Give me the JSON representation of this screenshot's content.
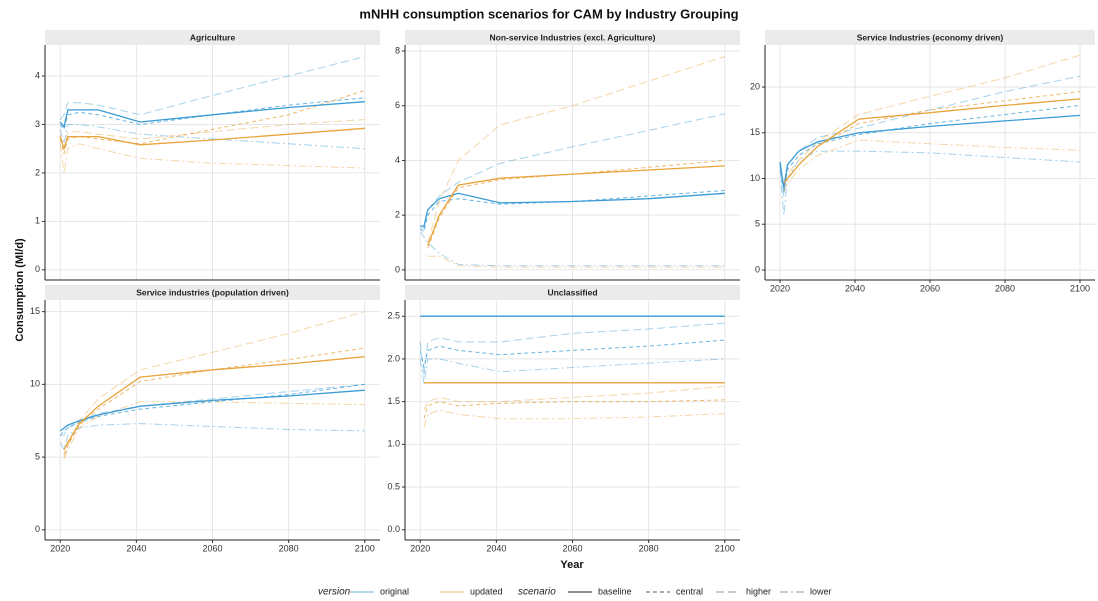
{
  "title": "mNHH consumption scenarios for CAM by Industry Grouping",
  "x_label": "Year",
  "y_label": "Consumption (Ml/d)",
  "legend": {
    "version": {
      "title": "version",
      "items": [
        {
          "name": "original",
          "color": "#3a9bd5"
        },
        {
          "name": "updated",
          "color": "#e8a33d"
        }
      ]
    },
    "scenario": {
      "title": "scenario",
      "items": [
        {
          "name": "baseline",
          "dash": "none",
          "opacity": 1
        },
        {
          "name": "central",
          "dash": "4 3",
          "opacity": 0.75
        },
        {
          "name": "higher",
          "dash": "8 4",
          "opacity": 0.45
        },
        {
          "name": "lower",
          "dash": "8 3 2 3",
          "opacity": 0.45
        }
      ]
    }
  },
  "chart_data": [
    {
      "type": "line",
      "title": "Agriculture",
      "x": [
        2020,
        2021,
        2022,
        2025,
        2030,
        2041,
        2060,
        2080,
        2100
      ],
      "xlim": [
        2016,
        2104
      ],
      "xticks": [
        2020,
        2040,
        2060,
        2080,
        2100
      ],
      "ylim": [
        -0.21,
        4.64
      ],
      "yticks": [
        0,
        1,
        2,
        3,
        4
      ],
      "series": [
        {
          "version": "original",
          "scenario": "baseline",
          "values": [
            3.05,
            2.95,
            3.3,
            3.3,
            3.3,
            3.05,
            3.2,
            3.35,
            3.47
          ]
        },
        {
          "version": "original",
          "scenario": "central",
          "values": [
            3.0,
            2.9,
            3.2,
            3.25,
            3.2,
            3.0,
            3.2,
            3.4,
            3.55
          ]
        },
        {
          "version": "original",
          "scenario": "higher",
          "values": [
            3.1,
            3.2,
            3.45,
            3.45,
            3.4,
            3.2,
            3.6,
            4.0,
            4.4
          ]
        },
        {
          "version": "original",
          "scenario": "lower",
          "values": [
            2.9,
            2.6,
            3.0,
            3.0,
            2.95,
            2.8,
            2.7,
            2.6,
            2.5
          ]
        },
        {
          "version": "updated",
          "scenario": "baseline",
          "values": [
            2.75,
            2.5,
            2.75,
            2.75,
            2.75,
            2.58,
            2.68,
            2.8,
            2.92
          ]
        },
        {
          "version": "updated",
          "scenario": "central",
          "values": [
            2.7,
            2.4,
            2.7,
            2.75,
            2.7,
            2.6,
            2.9,
            3.2,
            3.7
          ]
        },
        {
          "version": "updated",
          "scenario": "higher",
          "values": [
            2.8,
            2.5,
            2.85,
            2.85,
            2.8,
            2.7,
            2.85,
            3.0,
            3.1
          ]
        },
        {
          "version": "updated",
          "scenario": "lower",
          "values": [
            2.6,
            2.0,
            2.5,
            2.6,
            2.5,
            2.3,
            2.2,
            2.15,
            2.1
          ]
        }
      ]
    },
    {
      "type": "line",
      "title": "Non-service Industries (excl. Agriculture)",
      "x": [
        2020,
        2021,
        2022,
        2025,
        2030,
        2041,
        2060,
        2080,
        2100
      ],
      "xlim": [
        2016,
        2104
      ],
      "xticks": [
        2020,
        2040,
        2060,
        2080,
        2100
      ],
      "ylim": [
        -0.37,
        8.22
      ],
      "yticks": [
        0,
        2,
        4,
        6,
        8
      ],
      "series": [
        {
          "version": "original",
          "scenario": "baseline",
          "values": [
            1.6,
            1.6,
            2.2,
            2.6,
            2.8,
            2.45,
            2.5,
            2.6,
            2.8
          ]
        },
        {
          "version": "original",
          "scenario": "central",
          "values": [
            1.5,
            1.4,
            2.0,
            2.5,
            2.6,
            2.4,
            2.5,
            2.7,
            2.9
          ]
        },
        {
          "version": "original",
          "scenario": "higher",
          "values": [
            1.6,
            1.5,
            2.2,
            2.7,
            3.2,
            3.9,
            4.5,
            5.1,
            5.7
          ]
        },
        {
          "version": "original",
          "scenario": "lower",
          "values": [
            1.4,
            1.2,
            1.0,
            0.6,
            0.2,
            0.15,
            0.15,
            0.15,
            0.15
          ]
        },
        {
          "version": "updated",
          "scenario": "baseline",
          "values": [
            null,
            null,
            0.9,
            2.0,
            3.1,
            3.35,
            3.5,
            3.65,
            3.8
          ]
        },
        {
          "version": "updated",
          "scenario": "central",
          "values": [
            null,
            null,
            0.8,
            1.9,
            3.0,
            3.3,
            3.5,
            3.75,
            4.0
          ]
        },
        {
          "version": "updated",
          "scenario": "higher",
          "values": [
            null,
            null,
            1.0,
            2.5,
            4.0,
            5.3,
            6.0,
            6.9,
            7.8
          ]
        },
        {
          "version": "updated",
          "scenario": "lower",
          "values": [
            null,
            null,
            0.5,
            0.5,
            0.15,
            0.1,
            0.1,
            0.1,
            0.1
          ]
        }
      ]
    },
    {
      "type": "line",
      "title": "Service Industries (economy driven)",
      "x": [
        2020,
        2021,
        2022,
        2025,
        2030,
        2041,
        2060,
        2080,
        2100
      ],
      "xlim": [
        2016,
        2104
      ],
      "xticks": [
        2020,
        2040,
        2060,
        2080,
        2100
      ],
      "ylim": [
        -1.1,
        24.6
      ],
      "yticks": [
        0,
        5,
        10,
        15,
        20
      ],
      "series": [
        {
          "version": "original",
          "scenario": "baseline",
          "values": [
            11.8,
            9,
            11.5,
            13,
            14,
            15,
            15.7,
            16.3,
            16.9
          ]
        },
        {
          "version": "original",
          "scenario": "central",
          "values": [
            11.5,
            8.5,
            11,
            12.5,
            13.8,
            14.8,
            16,
            17,
            18
          ]
        },
        {
          "version": "original",
          "scenario": "higher",
          "values": [
            11.5,
            8,
            11.5,
            13,
            14.5,
            15.5,
            17.5,
            19.5,
            21.2
          ]
        },
        {
          "version": "original",
          "scenario": "lower",
          "values": [
            11,
            6,
            10,
            12,
            13,
            13,
            12.8,
            12.3,
            11.8
          ]
        },
        {
          "version": "updated",
          "scenario": "baseline",
          "values": [
            null,
            9.5,
            10,
            11.5,
            13.5,
            16.5,
            17.2,
            18,
            18.7
          ]
        },
        {
          "version": "updated",
          "scenario": "central",
          "values": [
            null,
            9,
            10,
            11.5,
            13.5,
            16,
            17.5,
            18.5,
            19.5
          ]
        },
        {
          "version": "updated",
          "scenario": "higher",
          "values": [
            null,
            9.5,
            10.5,
            12,
            14,
            17,
            19,
            21,
            23.5
          ]
        },
        {
          "version": "updated",
          "scenario": "lower",
          "values": [
            null,
            8.5,
            9.5,
            11,
            12.5,
            14.2,
            13.8,
            13.4,
            13.1
          ]
        }
      ]
    },
    {
      "type": "line",
      "title": "Service industries (population driven)",
      "x": [
        2020,
        2021,
        2022,
        2025,
        2030,
        2041,
        2060,
        2080,
        2100
      ],
      "xlim": [
        2016,
        2104
      ],
      "xticks": [
        2020,
        2040,
        2060,
        2080,
        2100
      ],
      "ylim": [
        -0.7,
        15.8
      ],
      "yticks": [
        0,
        5,
        10,
        15
      ],
      "series": [
        {
          "version": "original",
          "scenario": "baseline",
          "values": [
            6.8,
            7.0,
            7.2,
            7.5,
            7.9,
            8.5,
            8.9,
            9.2,
            9.6
          ]
        },
        {
          "version": "original",
          "scenario": "central",
          "values": [
            6.5,
            6.8,
            7.0,
            7.4,
            7.8,
            8.3,
            8.8,
            9.3,
            10
          ]
        },
        {
          "version": "original",
          "scenario": "higher",
          "values": [
            6.5,
            6.5,
            7.0,
            7.5,
            8.0,
            8.5,
            9.0,
            9.5,
            10
          ]
        },
        {
          "version": "original",
          "scenario": "lower",
          "values": [
            6,
            5.5,
            6.5,
            7.0,
            7.2,
            7.3,
            7.1,
            6.9,
            6.8
          ]
        },
        {
          "version": "updated",
          "scenario": "baseline",
          "values": [
            null,
            5.5,
            6,
            7.3,
            8.5,
            10.5,
            11,
            11.4,
            11.9
          ]
        },
        {
          "version": "updated",
          "scenario": "central",
          "values": [
            null,
            5.2,
            5.8,
            7.2,
            8.3,
            10.2,
            11,
            11.7,
            12.5
          ]
        },
        {
          "version": "updated",
          "scenario": "higher",
          "values": [
            null,
            5,
            5.8,
            7.5,
            9,
            11,
            12.2,
            13.5,
            15
          ]
        },
        {
          "version": "updated",
          "scenario": "lower",
          "values": [
            null,
            4.9,
            5.5,
            7.0,
            7.8,
            8.8,
            8.8,
            8.7,
            8.6
          ]
        }
      ]
    },
    {
      "type": "line",
      "title": "Unclassified",
      "x": [
        2020,
        2021,
        2022,
        2025,
        2030,
        2041,
        2060,
        2080,
        2100
      ],
      "xlim": [
        2016,
        2104
      ],
      "xticks": [
        2020,
        2040,
        2060,
        2080,
        2100
      ],
      "ylim": [
        -0.12,
        2.69
      ],
      "yticks": [
        {
          "value": 0,
          "label": "0.0"
        },
        0.5,
        {
          "value": 1,
          "label": "1.0"
        },
        1.5,
        {
          "value": 2,
          "label": "2.0"
        },
        2.5
      ],
      "series": [
        {
          "version": "original",
          "scenario": "baseline",
          "values": [
            2.5,
            2.5,
            2.5,
            2.5,
            2.5,
            2.5,
            2.5,
            2.5,
            2.5
          ]
        },
        {
          "version": "original",
          "scenario": "central",
          "values": [
            2.1,
            1.9,
            2.1,
            2.15,
            2.1,
            2.05,
            2.1,
            2.15,
            2.22
          ]
        },
        {
          "version": "original",
          "scenario": "higher",
          "values": [
            2.2,
            1.8,
            2.2,
            2.25,
            2.2,
            2.2,
            2.3,
            2.35,
            2.42
          ]
        },
        {
          "version": "original",
          "scenario": "lower",
          "values": [
            2.0,
            1.7,
            2.0,
            2.0,
            1.95,
            1.85,
            1.9,
            1.95,
            2.0
          ]
        },
        {
          "version": "updated",
          "scenario": "baseline",
          "values": [
            null,
            1.72,
            1.72,
            1.72,
            1.72,
            1.72,
            1.72,
            1.72,
            1.72
          ]
        },
        {
          "version": "updated",
          "scenario": "central",
          "values": [
            null,
            1.3,
            1.45,
            1.5,
            1.45,
            1.48,
            1.5,
            1.5,
            1.52
          ]
        },
        {
          "version": "updated",
          "scenario": "higher",
          "values": [
            null,
            1.4,
            1.5,
            1.55,
            1.5,
            1.5,
            1.55,
            1.6,
            1.68
          ]
        },
        {
          "version": "updated",
          "scenario": "lower",
          "values": [
            null,
            1.2,
            1.35,
            1.4,
            1.35,
            1.3,
            1.3,
            1.32,
            1.36
          ]
        }
      ]
    }
  ]
}
